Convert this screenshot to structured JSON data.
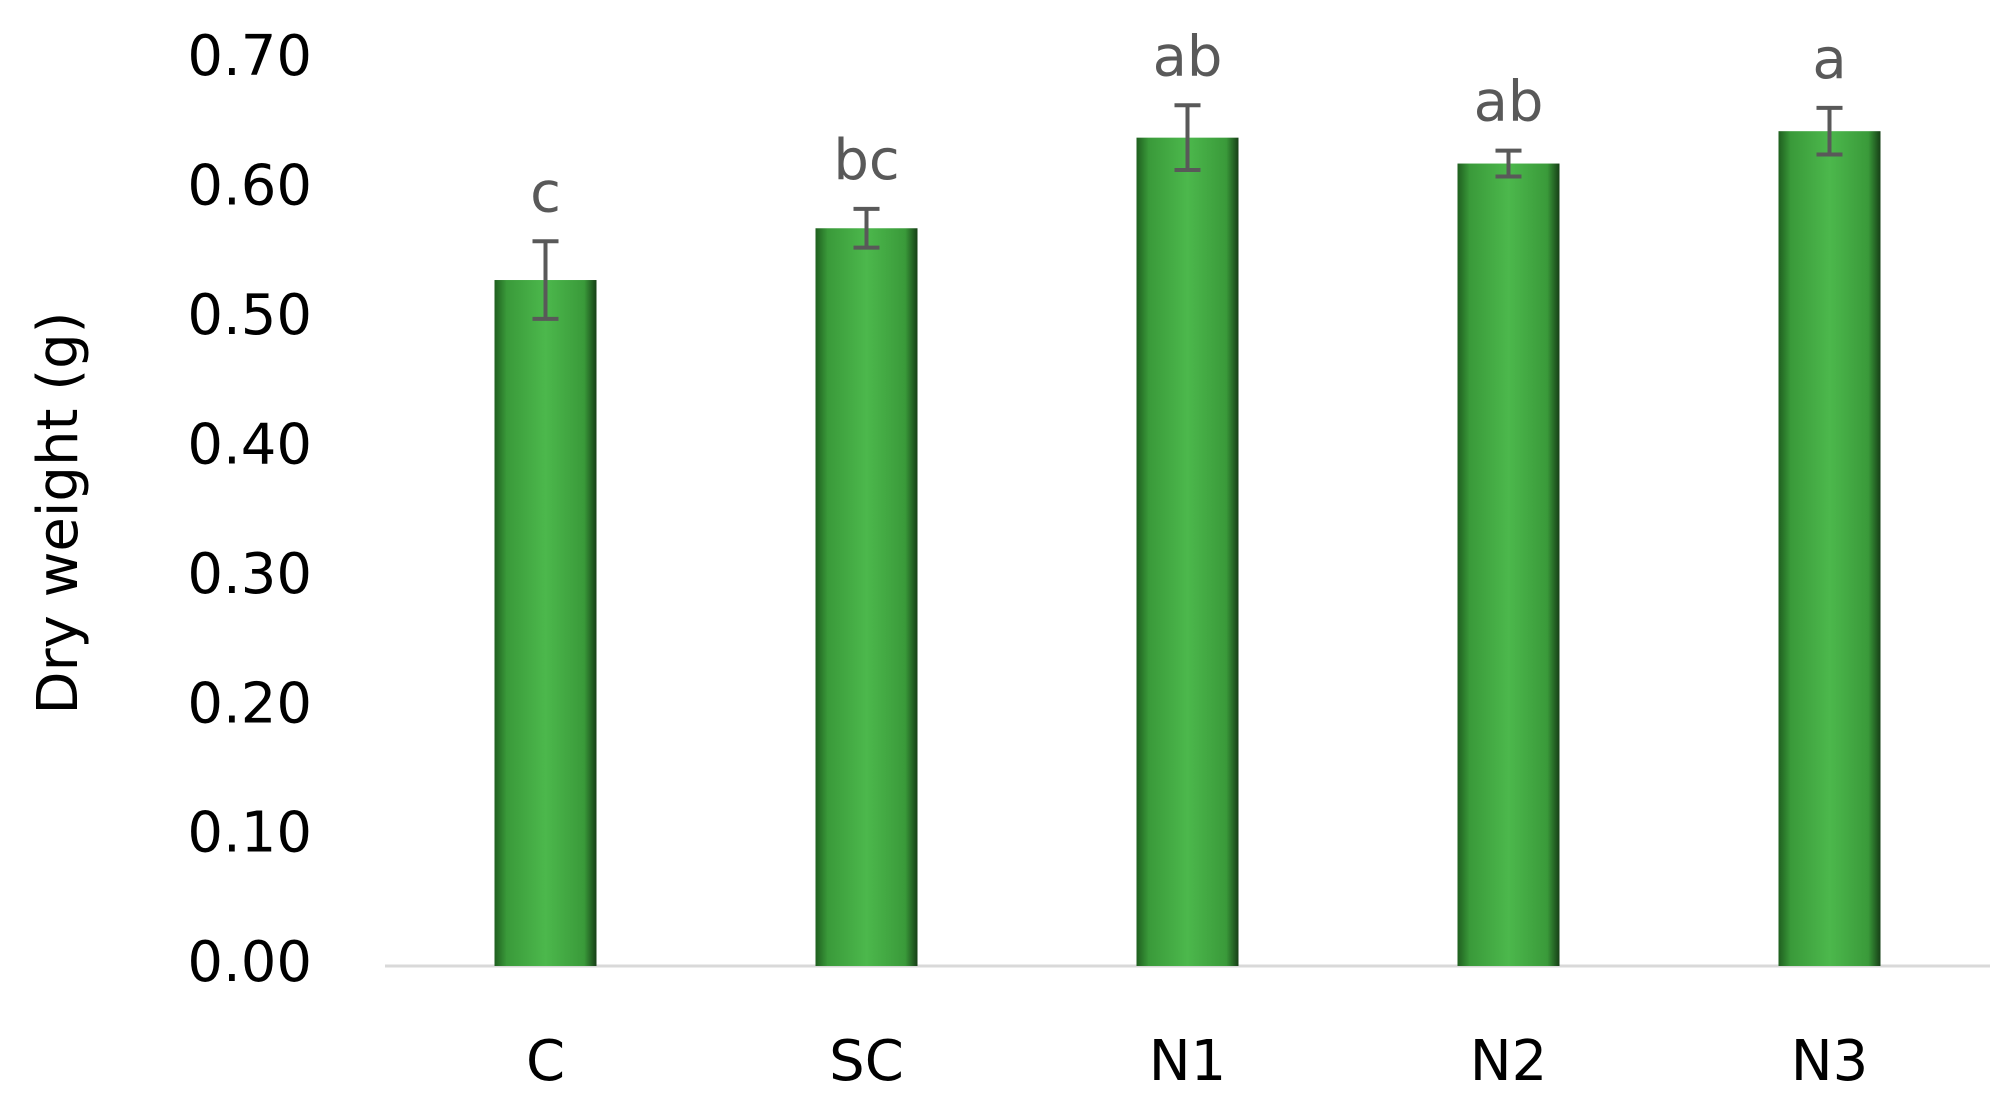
{
  "chart_data": {
    "type": "bar",
    "y_label": "Dry weight (g)",
    "categories": [
      "C",
      "SC",
      "N1",
      "N2",
      "N3"
    ],
    "values": [
      0.53,
      0.57,
      0.64,
      0.62,
      0.645
    ],
    "errors": [
      0.03,
      0.015,
      0.025,
      0.01,
      0.018
    ],
    "annotations": [
      "c",
      "bc",
      "ab",
      "ab",
      "a"
    ],
    "color": "#3a9a3a",
    "ylim": [
      0,
      0.7
    ],
    "yticks": [
      {
        "value": 0,
        "label": "0.00"
      },
      {
        "value": 0.1,
        "label": "0.10"
      },
      {
        "value": 0.2,
        "label": "0.20"
      },
      {
        "value": 0.3,
        "label": "0.30"
      },
      {
        "value": 0.4,
        "label": "0.40"
      },
      {
        "value": 0.5,
        "label": "0.50"
      },
      {
        "value": 0.6,
        "label": "0.60"
      },
      {
        "value": 0.7,
        "label": "0.70"
      }
    ],
    "grid": false
  }
}
